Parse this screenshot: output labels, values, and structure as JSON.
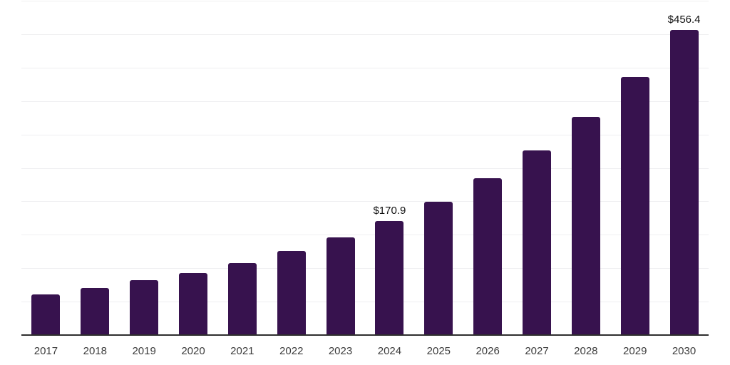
{
  "chart_data": {
    "type": "bar",
    "title": "",
    "xlabel": "",
    "ylabel": "",
    "categories": [
      "2017",
      "2018",
      "2019",
      "2020",
      "2021",
      "2022",
      "2023",
      "2024",
      "2025",
      "2026",
      "2027",
      "2028",
      "2029",
      "2030"
    ],
    "values": [
      61.1,
      70.7,
      81.8,
      92.8,
      107.7,
      125.8,
      146.4,
      170.9,
      199.8,
      234.3,
      276.2,
      325.9,
      385.7,
      456.4
    ],
    "data_labels": [
      null,
      null,
      null,
      null,
      null,
      null,
      null,
      "$170.9",
      null,
      null,
      null,
      null,
      null,
      "$456.4"
    ],
    "value_prefix": "$",
    "ylim": [
      0,
      500
    ],
    "gridline_interval": 50,
    "grid": "horizontal",
    "legend_position": "none",
    "y_axis_labels_visible": false,
    "colors": {
      "bar": "#37124e",
      "grid_line": "#efeff1",
      "axis_line": "#2e2e2e",
      "tick_label": "#3c3c3c",
      "data_label": "#111111",
      "background": "#ffffff"
    }
  }
}
